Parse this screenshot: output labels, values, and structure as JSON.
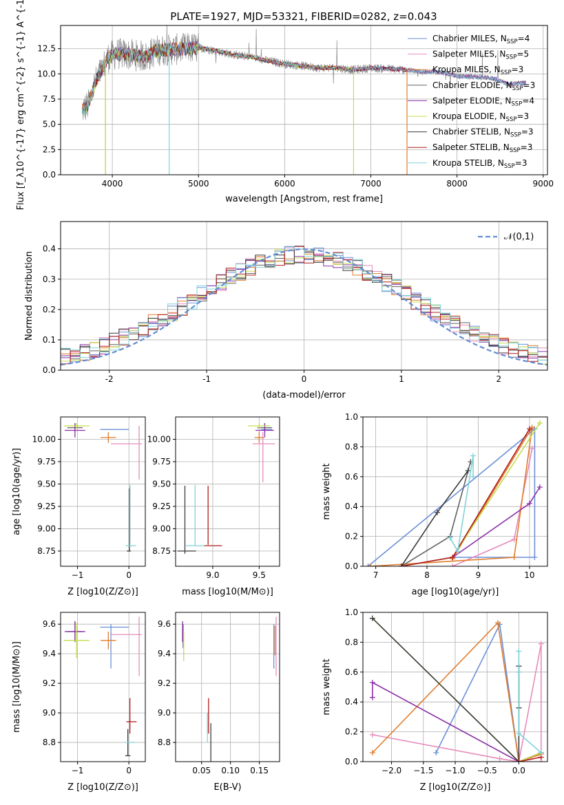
{
  "figure_title": "PLATE=1927, MJD=53321, FIBERID=0282, z=0.043",
  "palette": {
    "cm": "#6a8fd8",
    "sm": "#e68abb",
    "km": "#e07b2a",
    "ce": "#606060",
    "se": "#8a2fa8",
    "ke": "#c3dc4a",
    "cs": "#3a3a3a",
    "ss": "#b01a1a",
    "ks": "#7fd2d8",
    "obs": "#888888",
    "gauss": "#5f8dd3"
  },
  "legend": [
    {
      "key": "cm",
      "pre": "Chabrier MILES, N",
      "num": "4"
    },
    {
      "key": "sm",
      "pre": "Salpeter MILES, N",
      "num": "5"
    },
    {
      "key": "km",
      "pre": "Kroupa MILES, N",
      "num": "3"
    },
    {
      "key": "ce",
      "pre": "Chabrier ELODIE, N",
      "num": "3"
    },
    {
      "key": "se",
      "pre": "Salpeter ELODIE, N",
      "num": "4"
    },
    {
      "key": "ke",
      "pre": "Kroupa ELODIE, N",
      "num": "3"
    },
    {
      "key": "cs",
      "pre": "Chabrier STELIB, N",
      "num": "3"
    },
    {
      "key": "ss",
      "pre": "Salpeter STELIB, N",
      "num": "3"
    },
    {
      "key": "ks",
      "pre": "Kroupa STELIB, N",
      "num": "3"
    }
  ],
  "legend_sub": "SSP",
  "chart_data": [
    {
      "id": "spectrum",
      "type": "line",
      "xlabel": "wavelength [Angstrom, rest frame]",
      "ylabel": "Flux [f_λ10^{-17} erg cm^{-2} s^{-1} A^{-1}]",
      "xlim": [
        3400,
        9050
      ],
      "ylim": [
        0,
        14.8
      ],
      "xticks": [
        4000,
        5000,
        6000,
        7000,
        8000,
        9000
      ],
      "yticks": [
        0.0,
        2.5,
        5.0,
        7.5,
        10.0,
        12.5
      ],
      "ytick_labels": [
        "0.0",
        "2.5",
        "5.0",
        "7.5",
        "10.0",
        "12.5"
      ],
      "continuum": [
        [
          3650,
          6.4
        ],
        [
          3720,
          6.9
        ],
        [
          3800,
          9.1
        ],
        [
          3900,
          10.8
        ],
        [
          3950,
          11.6
        ],
        [
          4050,
          12.0
        ],
        [
          4200,
          11.9
        ],
        [
          4400,
          11.7
        ],
        [
          4500,
          12.3
        ],
        [
          4700,
          12.4
        ],
        [
          5000,
          12.6
        ],
        [
          5200,
          12.3
        ],
        [
          5400,
          11.9
        ],
        [
          5600,
          11.7
        ],
        [
          5800,
          11.3
        ],
        [
          6000,
          11.0
        ],
        [
          6200,
          10.8
        ],
        [
          6400,
          10.6
        ],
        [
          6600,
          10.6
        ],
        [
          6800,
          10.4
        ],
        [
          7000,
          10.6
        ],
        [
          7200,
          10.5
        ],
        [
          7400,
          10.4
        ],
        [
          7600,
          10.2
        ],
        [
          7800,
          10.2
        ],
        [
          8000,
          9.8
        ],
        [
          8200,
          9.7
        ],
        [
          8400,
          9.6
        ],
        [
          8600,
          9.0
        ],
        [
          8800,
          9.1
        ]
      ],
      "model_end": {
        "km": 7420,
        "cs": 7420,
        "ss": 7420,
        "ke": 6800
      },
      "dips": [
        {
          "key": "km",
          "x": 3920,
          "to": 0
        },
        {
          "key": "ke",
          "x": 3920,
          "to": 0
        },
        {
          "key": "ks",
          "x": 4660,
          "to": 0
        },
        {
          "key": "ke",
          "x": 6800,
          "to": 0
        },
        {
          "key": "km",
          "x": 7420,
          "to": 0
        }
      ]
    },
    {
      "id": "residuals",
      "type": "histogram",
      "xlabel": "(data-model)/error",
      "ylabel": "Normed distribution",
      "xlim": [
        -2.5,
        2.5
      ],
      "ylim": [
        0,
        0.49
      ],
      "xticks": [
        -2,
        -1,
        0,
        1,
        2
      ],
      "yticks": [
        0.0,
        0.1,
        0.2,
        0.3,
        0.4
      ],
      "ytick_labels": [
        "0.0",
        "0.1",
        "0.2",
        "0.3",
        "0.4"
      ],
      "bin_width": 0.1,
      "gauss_label": "𝒩(0,1)"
    },
    {
      "id": "age_vs_Z",
      "type": "errorbar",
      "xlabel": "Z [log10(Z/Z⊙)]",
      "ylabel": "age [log10(age/yr)]",
      "xlim": [
        -1.33,
        0.32
      ],
      "ylim": [
        8.58,
        10.25
      ],
      "xticks": [
        -1,
        0
      ],
      "yticks": [
        8.75,
        9.0,
        9.25,
        9.5,
        9.75,
        10.0
      ],
      "xtick_labels": [
        "−1",
        "0"
      ],
      "ytick_labels": [
        "8.75",
        "9.00",
        "9.25",
        "9.50",
        "9.75",
        "10.00"
      ],
      "points": [
        {
          "key": "cm",
          "x": -0.28,
          "y": 10.11,
          "xe": 0.28,
          "ye": 0.0
        },
        {
          "key": "sm",
          "x": -0.05,
          "y": 9.95,
          "xe": 0.3,
          "ye": 0.0
        },
        {
          "key": "sm",
          "x": 0.2,
          "y": 9.85,
          "xe": 0.0,
          "ye": 0.3
        },
        {
          "key": "km",
          "x": -0.4,
          "y": 10.02,
          "xe": 0.15,
          "ye": 0.06
        },
        {
          "key": "ce",
          "x": -1.05,
          "y": 10.13,
          "xe": 0.15,
          "ye": 0.05
        },
        {
          "key": "se",
          "x": -1.05,
          "y": 10.1,
          "xe": 0.2,
          "ye": 0.08
        },
        {
          "key": "ke",
          "x": -1.02,
          "y": 10.15,
          "xe": 0.25,
          "ye": 0.03
        },
        {
          "key": "cs",
          "x": 0.0,
          "y": 8.75,
          "xe": 0.04,
          "ye": 0.0
        },
        {
          "key": "cs",
          "x": 0.01,
          "y": 9.1,
          "xe": 0.0,
          "ye": 0.35
        },
        {
          "key": "ss",
          "x": 0.02,
          "y": 9.15,
          "xe": 0.0,
          "ye": 0.33
        },
        {
          "key": "ks",
          "x": 0.04,
          "y": 8.81,
          "xe": 0.1,
          "ye": 0.0
        },
        {
          "key": "ks",
          "x": 0.02,
          "y": 9.15,
          "xe": 0.0,
          "ye": 0.34
        }
      ]
    },
    {
      "id": "age_vs_mass",
      "type": "errorbar",
      "xlabel": "mass [log10(M/M⊙)]",
      "ylabel": "",
      "xlim": [
        8.6,
        9.72
      ],
      "ylim": [
        8.58,
        10.25
      ],
      "xticks": [
        9.0,
        9.5
      ],
      "yticks": [
        8.75,
        9.0,
        9.25,
        9.5,
        9.75,
        10.0
      ],
      "xtick_labels": [
        "9.0",
        "9.5"
      ],
      "ytick_labels": [
        "8.75",
        "9.00",
        "9.25",
        "9.50",
        "9.75",
        "10.00"
      ],
      "points": [
        {
          "key": "cm",
          "x": 9.58,
          "y": 10.11,
          "xe": 0.06,
          "ye": 0.0
        },
        {
          "key": "sm",
          "x": 9.55,
          "y": 9.95,
          "xe": 0.12,
          "ye": 0.0
        },
        {
          "key": "sm",
          "x": 9.54,
          "y": 9.8,
          "xe": 0.0,
          "ye": 0.28
        },
        {
          "key": "km",
          "x": 9.5,
          "y": 10.02,
          "xe": 0.05,
          "ye": 0.06
        },
        {
          "key": "ce",
          "x": 9.56,
          "y": 10.13,
          "xe": 0.08,
          "ye": 0.05
        },
        {
          "key": "se",
          "x": 9.56,
          "y": 10.1,
          "xe": 0.1,
          "ye": 0.08
        },
        {
          "key": "ke",
          "x": 9.5,
          "y": 10.15,
          "xe": 0.12,
          "ye": 0.03
        },
        {
          "key": "cs",
          "x": 8.72,
          "y": 8.75,
          "xe": 0.1,
          "ye": 0.0
        },
        {
          "key": "cs",
          "x": 8.7,
          "y": 9.1,
          "xe": 0.0,
          "ye": 0.38
        },
        {
          "key": "ss",
          "x": 8.95,
          "y": 9.15,
          "xe": 0.0,
          "ye": 0.33
        },
        {
          "key": "ss",
          "x": 9.0,
          "y": 8.81,
          "xe": 0.1,
          "ye": 0.0
        },
        {
          "key": "ks",
          "x": 8.81,
          "y": 8.81,
          "xe": 0.1,
          "ye": 0.0
        },
        {
          "key": "ks",
          "x": 8.81,
          "y": 9.15,
          "xe": 0.0,
          "ye": 0.34
        }
      ]
    },
    {
      "id": "weight_vs_age",
      "type": "line",
      "xlabel": "age [log10(age/yr)]",
      "ylabel": "mass weight",
      "xlim": [
        6.75,
        10.35
      ],
      "ylim": [
        0,
        1.0
      ],
      "xticks": [
        7,
        8,
        9,
        10
      ],
      "yticks": [
        0.0,
        0.2,
        0.4,
        0.6,
        0.8,
        1.0
      ],
      "xtick_labels": [
        "7",
        "8",
        "9",
        "10"
      ],
      "ytick_labels": [
        "0.0",
        "0.2",
        "0.4",
        "0.6",
        "0.8",
        "1.0"
      ],
      "series": [
        {
          "key": "cm",
          "x": [
            6.85,
            10.1,
            10.1,
            8.5
          ],
          "y": [
            0.0,
            0.92,
            0.06,
            0.06
          ]
        },
        {
          "key": "sm",
          "x": [
            8.5,
            9.7,
            10.05
          ],
          "y": [
            0.0,
            0.18,
            0.79
          ]
        },
        {
          "key": "km",
          "x": [
            6.9,
            9.7,
            10.05,
            8.5
          ],
          "y": [
            0.0,
            0.06,
            0.93,
            0.05
          ]
        },
        {
          "key": "ce",
          "x": [
            7.5,
            8.45,
            8.85
          ],
          "y": [
            0.0,
            0.2,
            0.7
          ]
        },
        {
          "key": "se",
          "x": [
            7.5,
            8.5,
            10.0,
            10.2
          ],
          "y": [
            0.0,
            0.06,
            0.42,
            0.53
          ]
        },
        {
          "key": "ke",
          "x": [
            7.5,
            8.5,
            10.2
          ],
          "y": [
            0.0,
            0.06,
            0.96
          ]
        },
        {
          "key": "cs",
          "x": [
            7.5,
            8.2,
            8.8
          ],
          "y": [
            0.0,
            0.36,
            0.64
          ]
        },
        {
          "key": "ss",
          "x": [
            7.5,
            8.5,
            10.0
          ],
          "y": [
            0.0,
            0.06,
            0.92
          ]
        },
        {
          "key": "ks",
          "x": [
            8.45,
            8.6,
            8.9,
            8.9
          ],
          "y": [
            0.19,
            0.1,
            0.74,
            0.6
          ]
        }
      ]
    },
    {
      "id": "mass_vs_Z",
      "type": "errorbar",
      "xlabel": "Z [log10(Z/Z⊙)]",
      "ylabel": "mass [log10(M/M⊙)]",
      "xlim": [
        -1.33,
        0.32
      ],
      "ylim": [
        8.67,
        9.68
      ],
      "xticks": [
        -1,
        0
      ],
      "yticks": [
        8.8,
        9.0,
        9.2,
        9.4,
        9.6
      ],
      "xtick_labels": [
        "−1",
        "0"
      ],
      "ytick_labels": [
        "8.8",
        "9.0",
        "9.2",
        "9.4",
        "9.6"
      ],
      "points": [
        {
          "key": "cm",
          "x": -0.28,
          "y": 9.58,
          "xe": 0.28,
          "ye": 0.0
        },
        {
          "key": "cm",
          "x": -0.35,
          "y": 9.45,
          "xe": 0.0,
          "ye": 0.15
        },
        {
          "key": "sm",
          "x": -0.05,
          "y": 9.53,
          "xe": 0.3,
          "ye": 0.0
        },
        {
          "key": "sm",
          "x": 0.2,
          "y": 9.45,
          "xe": 0.0,
          "ye": 0.2
        },
        {
          "key": "km",
          "x": -0.4,
          "y": 9.49,
          "xe": 0.15,
          "ye": 0.06
        },
        {
          "key": "ce",
          "x": -1.05,
          "y": 9.55,
          "xe": 0.15,
          "ye": 0.07
        },
        {
          "key": "se",
          "x": -1.05,
          "y": 9.55,
          "xe": 0.2,
          "ye": 0.07
        },
        {
          "key": "ke",
          "x": -1.02,
          "y": 9.49,
          "xe": 0.25,
          "ye": 0.12
        },
        {
          "key": "cs",
          "x": -0.02,
          "y": 8.71,
          "xe": 0.05,
          "ye": 0.0
        },
        {
          "key": "cs",
          "x": -0.02,
          "y": 8.8,
          "xe": 0.0,
          "ye": 0.09
        },
        {
          "key": "ss",
          "x": 0.05,
          "y": 8.94,
          "xe": 0.1,
          "ye": 0.0
        },
        {
          "key": "ss",
          "x": 0.02,
          "y": 8.98,
          "xe": 0.0,
          "ye": 0.12
        },
        {
          "key": "ks",
          "x": 0.02,
          "y": 8.8,
          "xe": 0.1,
          "ye": 0.0
        }
      ]
    },
    {
      "id": "mass_vs_EBV",
      "type": "errorbar",
      "xlabel": "E(B-V)",
      "ylabel": "",
      "xlim": [
        0.005,
        0.185
      ],
      "ylim": [
        8.67,
        9.68
      ],
      "xticks": [
        0.05,
        0.1,
        0.15
      ],
      "yticks": [
        8.8,
        9.0,
        9.2,
        9.4,
        9.6
      ],
      "xtick_labels": [
        "0.05",
        "0.10",
        "0.15"
      ],
      "ytick_labels": [
        "8.8",
        "9.0",
        "9.2",
        "9.4",
        "9.6"
      ],
      "points": [
        {
          "key": "cm",
          "x": 0.175,
          "y": 9.45,
          "xe": 0.0,
          "ye": 0.15
        },
        {
          "key": "sm",
          "x": 0.179,
          "y": 9.45,
          "xe": 0.0,
          "ye": 0.2
        },
        {
          "key": "km",
          "x": 0.177,
          "y": 9.49,
          "xe": 0.0,
          "ye": 0.1
        },
        {
          "key": "ce",
          "x": 0.018,
          "y": 9.52,
          "xe": 0.0,
          "ye": 0.08
        },
        {
          "key": "se",
          "x": 0.017,
          "y": 9.55,
          "xe": 0.0,
          "ye": 0.07
        },
        {
          "key": "ke",
          "x": 0.019,
          "y": 9.45,
          "xe": 0.0,
          "ye": 0.1
        },
        {
          "key": "cs",
          "x": 0.066,
          "y": 8.8,
          "xe": 0.0,
          "ye": 0.13
        },
        {
          "key": "ss",
          "x": 0.062,
          "y": 8.98,
          "xe": 0.0,
          "ye": 0.12
        },
        {
          "key": "ks",
          "x": 0.06,
          "y": 8.9,
          "xe": 0.0,
          "ye": 0.1
        }
      ]
    },
    {
      "id": "weight_vs_Z",
      "type": "line",
      "xlabel": "Z [log10(Z/Z⊙)]",
      "ylabel": "mass weight",
      "xlim": [
        -2.45,
        0.45
      ],
      "ylim": [
        0,
        1.0
      ],
      "xticks": [
        -2.0,
        -1.5,
        -1.0,
        -0.5,
        0.0
      ],
      "yticks": [
        0.0,
        0.2,
        0.4,
        0.6,
        0.8,
        1.0
      ],
      "xtick_labels": [
        "−2.0",
        "−1.5",
        "−1.0",
        "−0.5",
        "0.0"
      ],
      "ytick_labels": [
        "0.0",
        "0.2",
        "0.4",
        "0.6",
        "0.8",
        "1.0"
      ],
      "series": [
        {
          "key": "cm",
          "x": [
            -1.3,
            -0.3,
            0.0,
            0.35
          ],
          "y": [
            0.06,
            0.92,
            0.0,
            0.06
          ]
        },
        {
          "key": "sm",
          "x": [
            -2.3,
            -0.3,
            0.0,
            0.35,
            0.35
          ],
          "y": [
            0.18,
            0.02,
            0.0,
            0.79,
            0.0
          ]
        },
        {
          "key": "km",
          "x": [
            -2.3,
            -0.33,
            0.0,
            0.35
          ],
          "y": [
            0.06,
            0.93,
            0.0,
            0.05
          ]
        },
        {
          "key": "ce",
          "x": [
            0.0,
            0.0
          ],
          "y": [
            0.36,
            0.64
          ]
        },
        {
          "key": "se",
          "x": [
            -2.3,
            -2.3,
            0.0,
            0.35
          ],
          "y": [
            0.43,
            0.53,
            0.0,
            0.06
          ]
        },
        {
          "key": "ke",
          "x": [
            -2.3,
            0.0,
            0.35
          ],
          "y": [
            0.96,
            0.0,
            0.06
          ]
        },
        {
          "key": "cs",
          "x": [
            -2.3,
            0.0,
            0.0,
            0.0
          ],
          "y": [
            0.96,
            0.0,
            0.36,
            0.64
          ]
        },
        {
          "key": "ss",
          "x": [
            0.0,
            0.35
          ],
          "y": [
            0.0,
            0.03
          ]
        },
        {
          "key": "ks",
          "x": [
            0.0,
            0.0,
            0.0,
            0.35
          ],
          "y": [
            0.74,
            0.6,
            0.19,
            0.06
          ]
        }
      ]
    }
  ]
}
